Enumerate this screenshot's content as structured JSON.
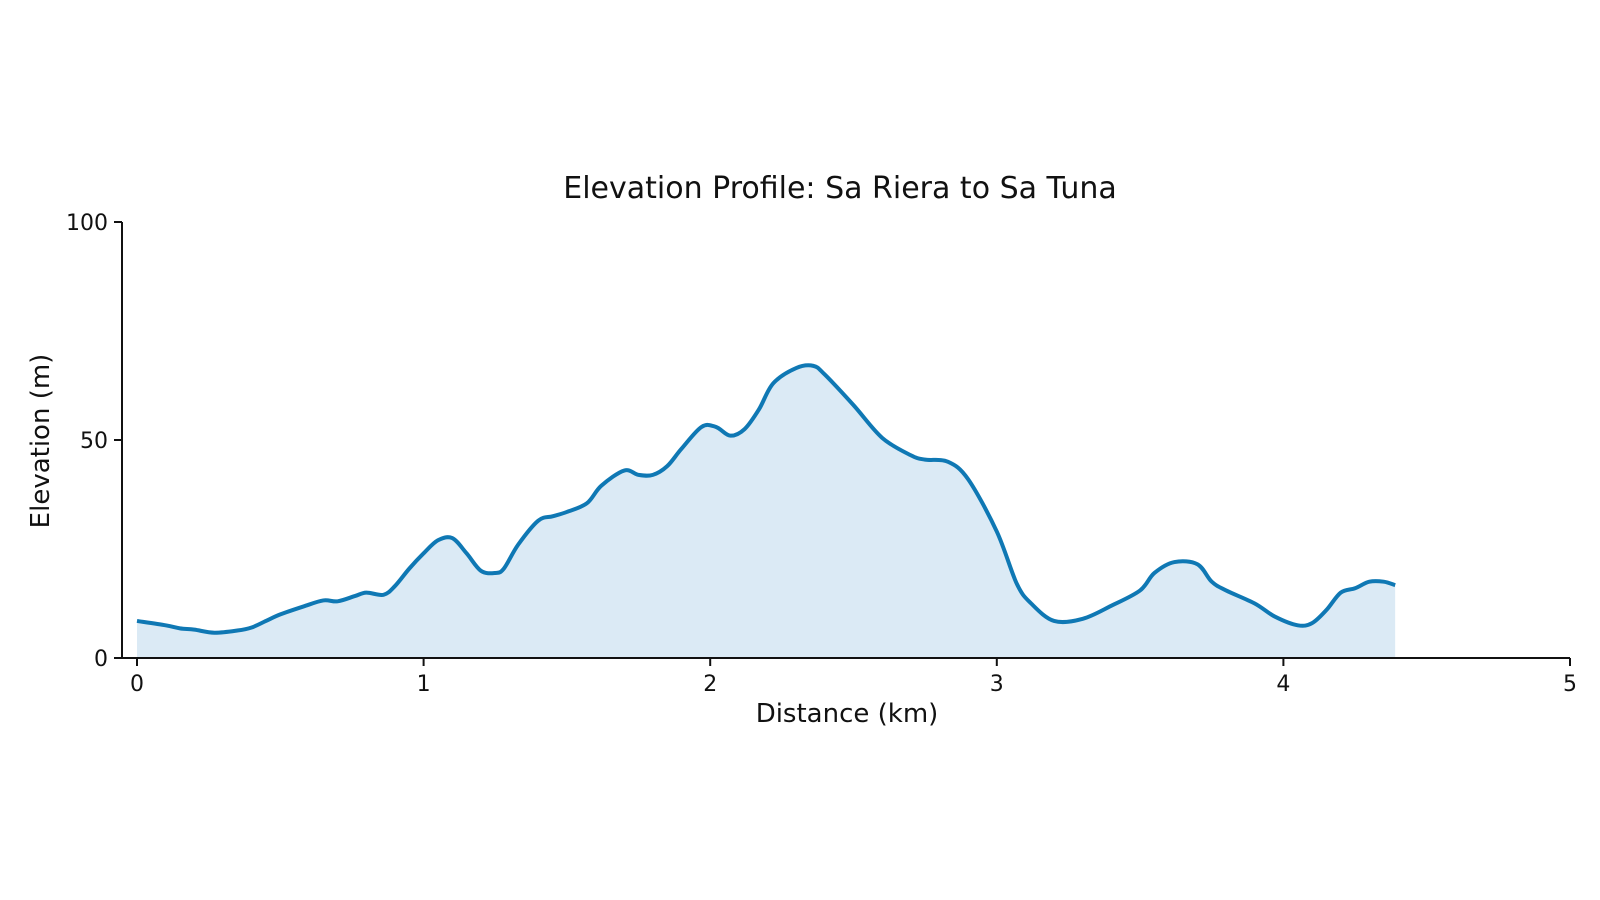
{
  "chart_data": {
    "type": "area",
    "title": "Elevation Profile: Sa Riera to Sa Tuna",
    "xlabel": "Distance (km)",
    "ylabel": "Elevation (m)",
    "xlim": [
      0,
      5
    ],
    "ylim": [
      0,
      100
    ],
    "x_ticks": [
      "0",
      "1",
      "2",
      "3",
      "4",
      "5"
    ],
    "y_ticks": [
      "0",
      "50",
      "100"
    ],
    "grid": false,
    "line_color": "#0f78b4",
    "fill_color": "#dbeaf5",
    "series": [
      {
        "x": [
          0.0,
          0.1,
          0.15,
          0.2,
          0.27,
          0.35,
          0.4,
          0.45,
          0.5,
          0.58,
          0.65,
          0.7,
          0.76,
          0.8,
          0.86,
          0.9,
          0.95,
          1.0,
          1.05,
          1.1,
          1.15,
          1.2,
          1.25,
          1.28,
          1.33,
          1.4,
          1.45,
          1.5,
          1.57,
          1.62,
          1.7,
          1.75,
          1.8,
          1.85,
          1.9,
          1.97,
          2.02,
          2.07,
          2.12,
          2.17,
          2.22,
          2.3,
          2.36,
          2.4,
          2.5,
          2.6,
          2.7,
          2.75,
          2.83,
          2.9,
          3.0,
          3.07,
          3.12,
          3.2,
          3.3,
          3.4,
          3.5,
          3.55,
          3.62,
          3.7,
          3.75,
          3.8,
          3.9,
          3.97,
          4.05,
          4.1,
          4.15,
          4.2,
          4.25,
          4.3,
          4.35,
          4.39
        ],
        "y": [
          8.5,
          7.5,
          6.8,
          6.5,
          5.8,
          6.3,
          7.0,
          8.5,
          10.0,
          11.8,
          13.2,
          13.0,
          14.2,
          15.0,
          14.5,
          16.5,
          20.5,
          24.0,
          27.0,
          27.5,
          24.0,
          20.0,
          19.5,
          20.5,
          26.0,
          31.5,
          32.5,
          33.5,
          35.5,
          39.5,
          43.0,
          42.0,
          42.0,
          44.0,
          48.0,
          53.0,
          53.0,
          51.0,
          52.5,
          57.0,
          63.0,
          66.5,
          67.0,
          65.0,
          58.0,
          50.5,
          46.5,
          45.5,
          45.0,
          41.0,
          29.0,
          17.0,
          12.5,
          8.5,
          9.0,
          12.0,
          15.5,
          19.5,
          22.0,
          21.5,
          17.5,
          15.5,
          12.5,
          9.5,
          7.5,
          8.0,
          11.0,
          15.0,
          16.0,
          17.5,
          17.5,
          16.7
        ]
      }
    ]
  }
}
